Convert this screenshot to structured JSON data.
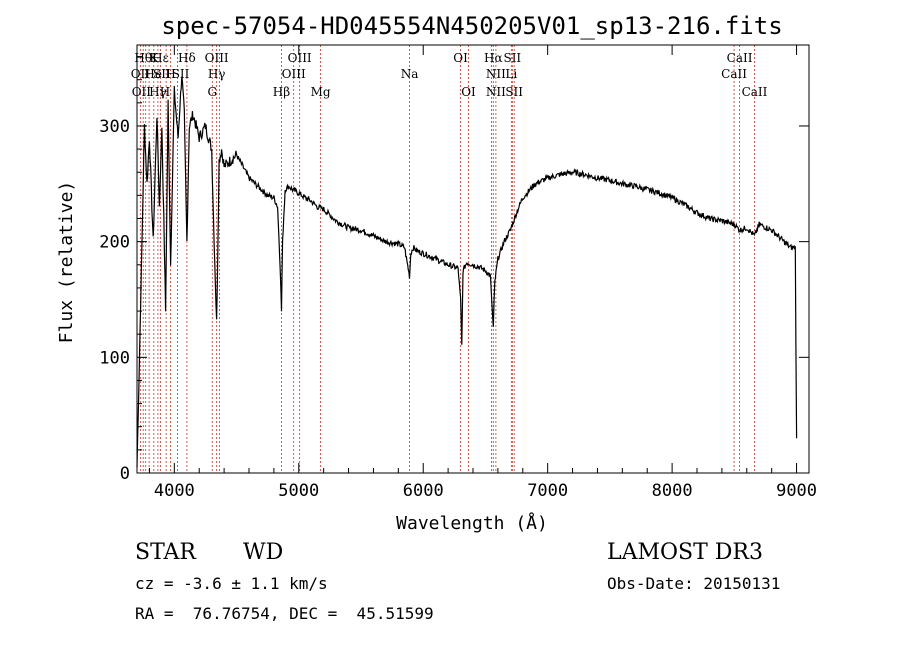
{
  "chart_data": {
    "type": "line",
    "title": "spec-57054-HD045554N450205V01_sp13-216.fits",
    "xlabel": "Wavelength (Å)",
    "ylabel": "Flux (relative)",
    "xlim": [
      3700,
      9100
    ],
    "ylim": [
      0,
      370
    ],
    "xticks": [
      4000,
      5000,
      6000,
      7000,
      8000,
      9000
    ],
    "yticks": [
      0,
      100,
      200,
      300
    ],
    "series": [
      {
        "x": [
          3700,
          3730,
          3760,
          3780,
          3800,
          3830,
          3860,
          3880,
          3900,
          3930,
          3950,
          3970,
          4000,
          4030,
          4060,
          4080,
          4101,
          4120,
          4150,
          4200,
          4250,
          4300,
          4320,
          4340,
          4360,
          4380,
          4400,
          4450,
          4500,
          4550,
          4600,
          4650,
          4700,
          4750,
          4800,
          4830,
          4850,
          4861,
          4870,
          4890,
          4920,
          4950,
          5000,
          5050,
          5100,
          5150,
          5200,
          5300,
          5400,
          5500,
          5600,
          5700,
          5800,
          5850,
          5890,
          5900,
          5920,
          5950,
          6000,
          6100,
          6200,
          6280,
          6300,
          6310,
          6320,
          6350,
          6400,
          6450,
          6500,
          6540,
          6555,
          6563,
          6575,
          6600,
          6650,
          6700,
          6750,
          6800,
          6900,
          7000,
          7100,
          7200,
          7300,
          7400,
          7500,
          7600,
          7700,
          7800,
          7900,
          8000,
          8100,
          8200,
          8300,
          8400,
          8500,
          8542,
          8600,
          8662,
          8700,
          8800,
          8900,
          8950,
          8990,
          9000
        ],
        "y": [
          5,
          150,
          300,
          250,
          290,
          200,
          310,
          230,
          300,
          140,
          320,
          180,
          330,
          290,
          345,
          310,
          200,
          300,
          310,
          290,
          300,
          280,
          200,
          130,
          270,
          280,
          265,
          270,
          275,
          265,
          255,
          250,
          245,
          240,
          238,
          230,
          180,
          140,
          200,
          245,
          248,
          245,
          242,
          238,
          235,
          230,
          228,
          218,
          212,
          210,
          205,
          200,
          198,
          195,
          170,
          190,
          195,
          192,
          190,
          185,
          180,
          177,
          150,
          110,
          175,
          182,
          180,
          178,
          175,
          170,
          140,
          125,
          165,
          185,
          200,
          210,
          225,
          238,
          250,
          255,
          258,
          260,
          258,
          255,
          253,
          250,
          248,
          245,
          242,
          238,
          232,
          225,
          220,
          218,
          215,
          210,
          212,
          205,
          215,
          210,
          200,
          195,
          195,
          30
        ]
      }
    ],
    "line_labels": [
      {
        "x": 3750,
        "text": "Hθ",
        "row": 1
      },
      {
        "x": 3835,
        "text": "K",
        "row": 1
      },
      {
        "x": 3889,
        "text": "Hε",
        "row": 1
      },
      {
        "x": 4101,
        "text": "Hδ",
        "row": 1
      },
      {
        "x": 4340,
        "text": "OIII",
        "row": 1
      },
      {
        "x": 5007,
        "text": "OIII",
        "row": 1
      },
      {
        "x": 6300,
        "text": "OI",
        "row": 1
      },
      {
        "x": 6563,
        "text": "Hα",
        "row": 1
      },
      {
        "x": 6716,
        "text": "SII",
        "row": 1
      },
      {
        "x": 8542,
        "text": "CaII",
        "row": 1
      },
      {
        "x": 3727,
        "text": "OII",
        "row": 2
      },
      {
        "x": 3830,
        "text": "He",
        "row": 2
      },
      {
        "x": 3900,
        "text": "SII",
        "row": 2
      },
      {
        "x": 3970,
        "text": "H",
        "row": 2
      },
      {
        "x": 4050,
        "text": "SII",
        "row": 2
      },
      {
        "x": 4340,
        "text": "Hγ",
        "row": 2
      },
      {
        "x": 4959,
        "text": "OIII",
        "row": 2
      },
      {
        "x": 5890,
        "text": "Na",
        "row": 2
      },
      {
        "x": 6584,
        "text": "NII",
        "row": 2
      },
      {
        "x": 6708,
        "text": "Li",
        "row": 2
      },
      {
        "x": 8498,
        "text": "CaII",
        "row": 2
      },
      {
        "x": 3735,
        "text": "OII",
        "row": 3
      },
      {
        "x": 3868,
        "text": "Hγ",
        "row": 3
      },
      {
        "x": 3925,
        "text": "H",
        "row": 3
      },
      {
        "x": 4305,
        "text": "G",
        "row": 3
      },
      {
        "x": 4861,
        "text": "Hβ",
        "row": 3
      },
      {
        "x": 5175,
        "text": "Mg",
        "row": 3
      },
      {
        "x": 6364,
        "text": "OI",
        "row": 3
      },
      {
        "x": 6584,
        "text": "NII",
        "row": 3
      },
      {
        "x": 6731,
        "text": "SII",
        "row": 3
      },
      {
        "x": 8662,
        "text": "CaII",
        "row": 3
      }
    ],
    "line_positions": [
      3727,
      3750,
      3770,
      3797,
      3835,
      3868,
      3889,
      3934,
      3970,
      4026,
      4101,
      4305,
      4340,
      4363,
      4861,
      4959,
      5007,
      5175,
      5890,
      6300,
      6364,
      6548,
      6563,
      6584,
      6708,
      6716,
      6731,
      8498,
      8542,
      8662
    ]
  },
  "info": {
    "object_class": "STAR",
    "subclass": "WD",
    "survey": "LAMOST DR3",
    "cz": "cz = -3.6 ± 1.1 km/s",
    "obs_date": "Obs-Date: 20150131",
    "coords": "RA =  76.76754, DEC =  45.51599"
  }
}
